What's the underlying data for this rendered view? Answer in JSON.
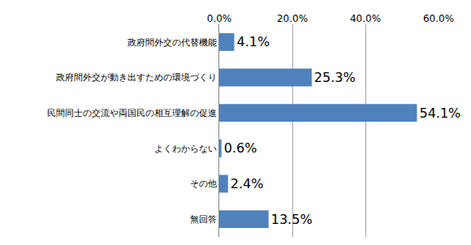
{
  "chart_data": {
    "type": "bar",
    "orientation": "horizontal",
    "categories": [
      "政府間外交の代替機能",
      "政府間外交が動き出すための環境づくり",
      "民間同士の交流や両国民の相互理解の促進",
      "よくわからない",
      "その他",
      "無回答"
    ],
    "values": [
      4.1,
      25.3,
      54.1,
      0.6,
      2.4,
      13.5
    ],
    "value_labels": [
      "4.1%",
      "25.3%",
      "54.1%",
      "0.6%",
      "2.4%",
      "13.5%"
    ],
    "data_labels": true,
    "color": "#4f81bd",
    "xlim": [
      0,
      60
    ],
    "xticks": [
      {
        "value": 0,
        "label": "0.0%"
      },
      {
        "value": 20,
        "label": "20.0%"
      },
      {
        "value": 40,
        "label": "40.0%"
      },
      {
        "value": 60,
        "label": "60.0%"
      }
    ],
    "grid": true
  }
}
